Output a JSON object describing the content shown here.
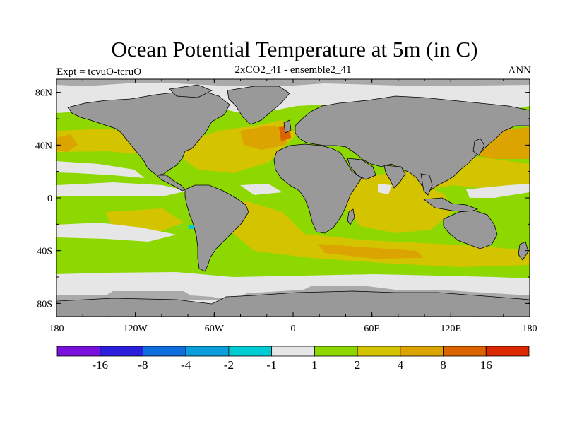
{
  "title": "Ocean Potential Temperature at 5m (in C)",
  "left_label": "Expt = tcvuO-tcruO",
  "center_label": "2xCO2_41 - ensemble2_41",
  "right_label": "ANN",
  "lat_ticks": [
    {
      "value": 80,
      "label": "80N"
    },
    {
      "value": 40,
      "label": "40N"
    },
    {
      "value": 0,
      "label": "0"
    },
    {
      "value": -40,
      "label": "40S"
    },
    {
      "value": -80,
      "label": "80S"
    }
  ],
  "lon_ticks": [
    {
      "value": -180,
      "label": "180"
    },
    {
      "value": -120,
      "label": "120W"
    },
    {
      "value": -60,
      "label": "60W"
    },
    {
      "value": 0,
      "label": "0"
    },
    {
      "value": 60,
      "label": "60E"
    },
    {
      "value": 120,
      "label": "120E"
    },
    {
      "value": 180,
      "label": "180"
    }
  ],
  "colorbar": {
    "colors": [
      "#7a10dc",
      "#2b1fdc",
      "#0d6ddc",
      "#0a9fdc",
      "#00ccd4",
      "#e6e6e6",
      "#8cd800",
      "#d4c400",
      "#dca400",
      "#dc6400",
      "#dc2800"
    ],
    "labels": [
      "-16",
      "-8",
      "-4",
      "-2",
      "-1",
      "1",
      "2",
      "4",
      "8",
      "16"
    ]
  },
  "colors": {
    "land": "#999999",
    "missing": "#e6e6e6",
    "ice_edge": "#aaaaaa",
    "ocean_light_warm": "#8cd800",
    "ocean_warm": "#d4c400",
    "ocean_warmer": "#dca400",
    "ocean_hot": "#dc6400",
    "ocean_cool": "#00ccd4"
  }
}
